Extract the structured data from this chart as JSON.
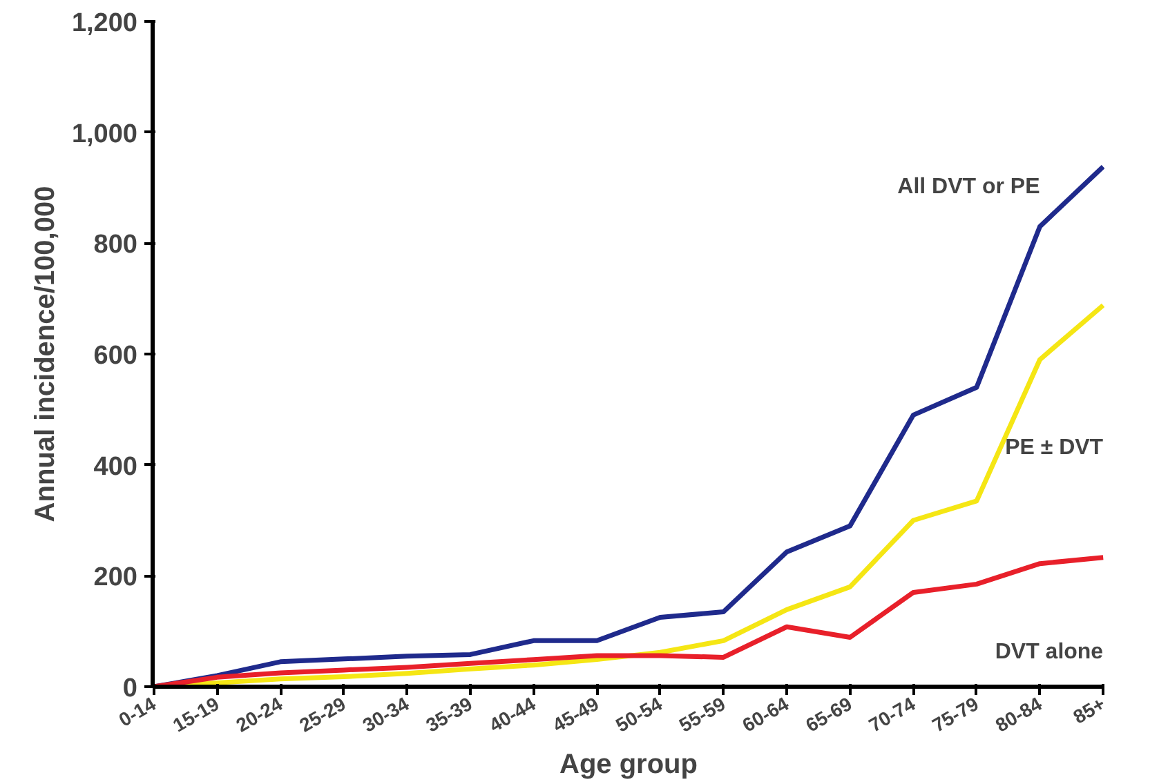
{
  "chart_data": {
    "type": "line",
    "xlabel": "Age group",
    "ylabel": "Annual incidence/100,000",
    "categories": [
      "0-14",
      "15-19",
      "20-24",
      "25-29",
      "30-34",
      "35-39",
      "40-44",
      "45-49",
      "50-54",
      "55-59",
      "60-64",
      "65-69",
      "70-74",
      "75-79",
      "80-84",
      "85+"
    ],
    "series": [
      {
        "name": "All DVT or PE",
        "color": "#1f2a8c",
        "values": [
          0,
          20,
          45,
          50,
          55,
          58,
          83,
          83,
          125,
          135,
          243,
          290,
          490,
          540,
          830,
          938
        ]
      },
      {
        "name": "PE ± DVT",
        "color": "#f5e614",
        "values": [
          0,
          7,
          14,
          18,
          24,
          32,
          39,
          49,
          62,
          83,
          139,
          180,
          300,
          335,
          590,
          688
        ]
      },
      {
        "name": "DVT alone",
        "color": "#e8202a",
        "values": [
          0,
          17,
          25,
          30,
          35,
          42,
          49,
          56,
          56,
          53,
          108,
          89,
          170,
          185,
          222,
          233
        ]
      }
    ],
    "ylim": [
      0,
      1200
    ],
    "yticks": [
      0,
      {
        "value": 200,
        "label": "200"
      },
      {
        "value": 400,
        "label": "400"
      },
      {
        "value": 600,
        "label": "600"
      },
      {
        "value": 800,
        "label": "800"
      },
      {
        "value": 1000,
        "label": "1,000"
      },
      {
        "value": 1200,
        "label": "1,200"
      }
    ],
    "grid": false,
    "legend": false,
    "marker": "none",
    "line_style": "solid"
  }
}
